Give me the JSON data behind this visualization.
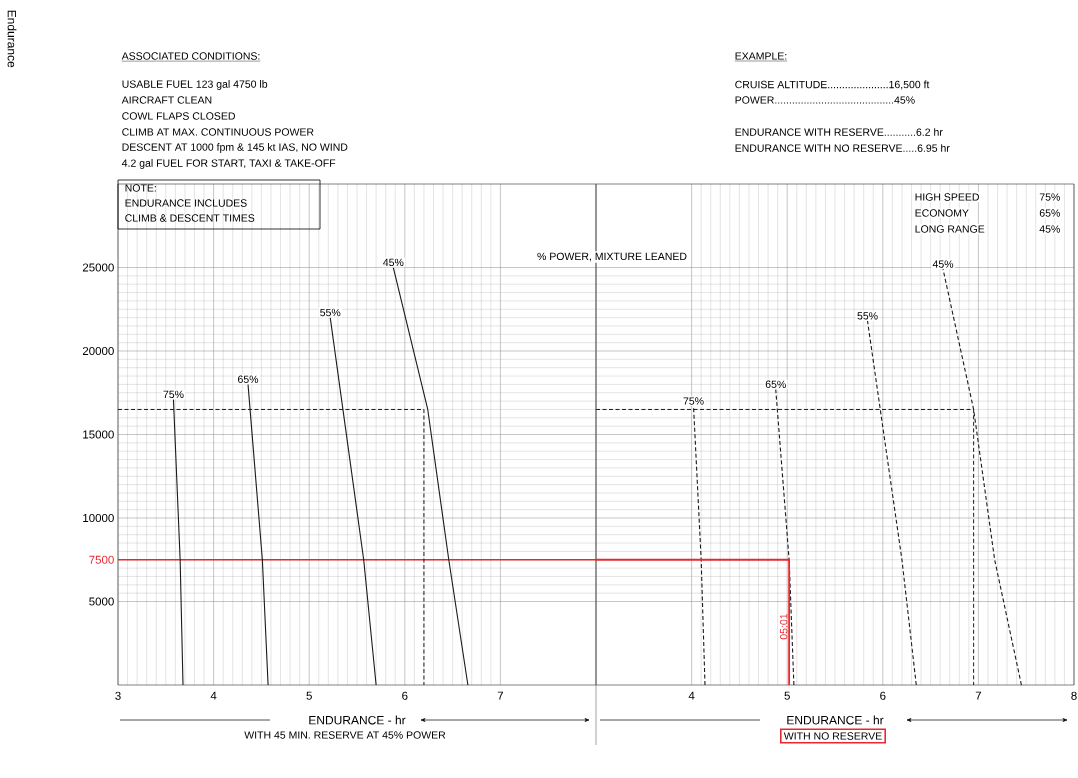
{
  "chart_data": [
    {
      "type": "line",
      "xlabel": "ENDURANCE - hr",
      "xlim": [
        3,
        8
      ],
      "ylim": [
        0,
        30000
      ],
      "xticks": [
        3,
        4,
        5,
        6,
        7
      ],
      "yticks": [
        5000,
        10000,
        15000,
        20000,
        25000
      ],
      "grid": true,
      "marker": "none",
      "line_style": "solid",
      "series": [
        {
          "name": "75%",
          "color": "#1a1a1a",
          "x": [
            3.68,
            3.65,
            3.58
          ],
          "values": [
            0,
            7500,
            17100
          ]
        },
        {
          "name": "65%",
          "color": "#1a1a1a",
          "x": [
            4.57,
            4.51,
            4.36
          ],
          "values": [
            0,
            7500,
            18000
          ]
        },
        {
          "name": "55%",
          "color": "#1a1a1a",
          "x": [
            5.7,
            5.57,
            5.22
          ],
          "values": [
            0,
            7500,
            22000
          ]
        },
        {
          "name": "45%",
          "color": "#1a1a1a",
          "x": [
            6.66,
            6.46,
            6.24,
            5.88
          ],
          "values": [
            0,
            7500,
            16500,
            25000
          ]
        },
        {
          "type": "line",
          "color": "#1a1a1a",
          "line_style": "dashed",
          "x": [
            3,
            6.2,
            6.2
          ],
          "values": [
            16500,
            16500,
            0
          ]
        }
      ],
      "ref_lines": [
        {
          "axis": "y",
          "value": 7500,
          "label": "7500",
          "color": "#e8282e"
        }
      ],
      "annotations": [
        "ASSOCIATED CONDITIONS:",
        "USABLE FUEL  123 gal  4750 lb",
        "AIRCRAFT CLEAN",
        "COWL FLAPS CLOSED",
        "CLIMB AT MAX. CONTINUOUS POWER",
        "DESCENT AT 1000 fpm & 145 kt IAS,  NO WIND",
        "4.2 gal FUEL FOR START, TAXI & TAKE-OFF",
        "NOTE:",
        "ENDURANCE INCLUDES",
        "CLIMB & DESCENT TIMES",
        "WITH 45 MIN. RESERVE AT 45% POWER",
        "% POWER,  MIXTURE LEANED",
        "Endurance"
      ]
    },
    {
      "type": "line",
      "xlabel": "ENDURANCE - hr",
      "xlim": [
        3,
        8
      ],
      "ylim": [
        0,
        30000
      ],
      "xticks": [
        4,
        5,
        6,
        7,
        8
      ],
      "yticks": [
        5000,
        10000,
        15000,
        20000,
        25000
      ],
      "tick_labels": "x",
      "grid": true,
      "marker": "none",
      "line_style": "dashed",
      "series": [
        {
          "name": "75%",
          "color": "#1a1a1a",
          "x": [
            4.14,
            4.1,
            4.02
          ],
          "values": [
            0,
            7500,
            16700
          ]
        },
        {
          "name": "65%",
          "color": "#1a1a1a",
          "x": [
            5.07,
            5.02,
            4.88
          ],
          "values": [
            0,
            7500,
            17700
          ]
        },
        {
          "name": "55%",
          "color": "#1a1a1a",
          "x": [
            6.35,
            6.2,
            5.84
          ],
          "values": [
            0,
            7500,
            21800
          ]
        },
        {
          "name": "45%",
          "color": "#1a1a1a",
          "x": [
            7.45,
            7.17,
            6.95,
            6.63
          ],
          "values": [
            0,
            7500,
            16500,
            24900
          ]
        },
        {
          "type": "line",
          "color": "#1a1a1a",
          "line_style": "dashed",
          "x": [
            3,
            6.95,
            6.95
          ],
          "values": [
            16500,
            16500,
            0
          ]
        },
        {
          "type": "line",
          "color": "#e8282e",
          "line_style": "solid",
          "x": [
            3,
            5.02,
            5.02
          ],
          "values": [
            7500,
            7500,
            0
          ]
        }
      ],
      "annotations": [
        "EXAMPLE:",
        "CRUISE ALTITUDE.....................16,500 ft",
        "POWER.........................................45%",
        "ENDURANCE  WITH RESERVE...........6.2 hr",
        "ENDURANCE  WITH NO RESERVE.....6.95 hr",
        "HIGH SPEED",
        "75%",
        "ECONOMY",
        "65%",
        "LONG RANGE",
        "45%",
        "WITH NO RESERVE",
        {
          "text": "05:01",
          "x": 5.02,
          "y": 3500
        }
      ]
    }
  ]
}
